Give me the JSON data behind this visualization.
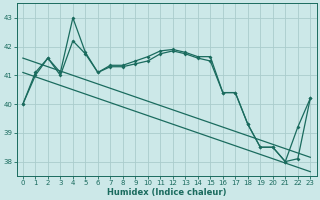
{
  "xlabel": "Humidex (Indice chaleur)",
  "bg_color": "#cce8e8",
  "grid_color": "#aacccc",
  "line_color": "#1a6b5e",
  "x": [
    0,
    1,
    2,
    3,
    4,
    5,
    6,
    7,
    8,
    9,
    10,
    11,
    12,
    13,
    14,
    15,
    16,
    17,
    18,
    19,
    20,
    21,
    22,
    23
  ],
  "series_jagged": [
    40.0,
    41.1,
    41.6,
    41.1,
    43.0,
    41.8,
    41.1,
    41.35,
    41.35,
    41.5,
    41.65,
    41.85,
    41.9,
    41.8,
    41.65,
    41.65,
    40.4,
    40.4,
    39.3,
    38.5,
    38.5,
    38.0,
    39.2,
    40.2
  ],
  "series_smooth": [
    40.0,
    41.0,
    41.6,
    41.0,
    42.2,
    41.75,
    41.1,
    41.3,
    41.3,
    41.4,
    41.5,
    41.75,
    41.85,
    41.75,
    41.6,
    41.5,
    40.4,
    40.4,
    39.3,
    38.5,
    38.5,
    38.0,
    38.1,
    40.2
  ],
  "diag_upper": [
    41.6,
    41.45,
    41.3,
    41.15,
    41.0,
    40.85,
    40.7,
    40.55,
    40.4,
    40.25,
    40.1,
    39.95,
    39.8,
    39.65,
    39.5,
    39.35,
    39.2,
    39.05,
    38.9,
    38.75,
    38.6,
    38.45,
    38.3,
    38.15
  ],
  "diag_lower": [
    41.1,
    40.95,
    40.8,
    40.65,
    40.5,
    40.35,
    40.2,
    40.05,
    39.9,
    39.75,
    39.6,
    39.45,
    39.3,
    39.15,
    39.0,
    38.85,
    38.7,
    38.55,
    38.4,
    38.25,
    38.1,
    37.95,
    37.8,
    37.65
  ],
  "ylim": [
    37.5,
    43.5
  ],
  "xlim": [
    -0.5,
    23.5
  ],
  "yticks": [
    38,
    39,
    40,
    41,
    42,
    43
  ],
  "xticks": [
    0,
    1,
    2,
    3,
    4,
    5,
    6,
    7,
    8,
    9,
    10,
    11,
    12,
    13,
    14,
    15,
    16,
    17,
    18,
    19,
    20,
    21,
    22,
    23
  ]
}
